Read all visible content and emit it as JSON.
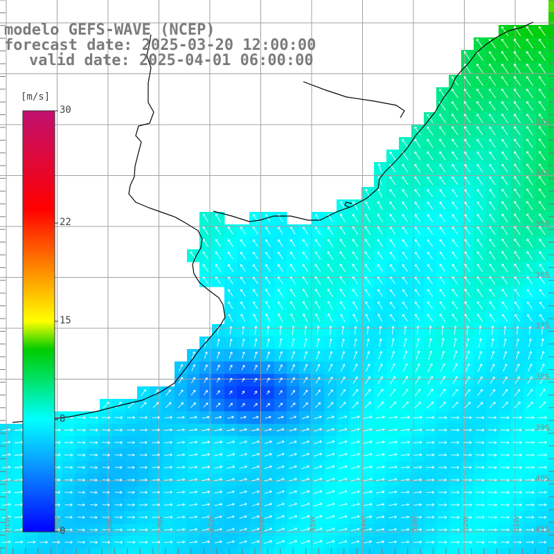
{
  "header": {
    "model": "modelo GEFS-WAVE (NCEP)",
    "forecast": "forecast date: 2025-03-20 12:00:00",
    "valid": "valid date: 2025-04-01 06:00:00"
  },
  "colorbar": {
    "unit": "[m/s]",
    "ticks": [
      "30",
      "22",
      "15",
      "8",
      "0"
    ],
    "tick_values": [
      30,
      22,
      15,
      8,
      0
    ],
    "range": [
      0,
      30
    ],
    "colors": [
      "#0000ff",
      "#0aa0ff",
      "#00ffff",
      "#00e060",
      "#00cc00",
      "#ffff00",
      "#ff8000",
      "#ff0000",
      "#c01070"
    ]
  },
  "map": {
    "variable": "wind speed",
    "land_color": "#ffffff",
    "coastline_color": "#000000",
    "grid_color": "#a0a0a0",
    "arrow_color": "#ffffff",
    "edge_labels": [
      "33S",
      "34S",
      "35S",
      "36S",
      "37S",
      "38S",
      "39S",
      "40S",
      "41S",
      "61W",
      "60W",
      "59W",
      "58W",
      "57W",
      "56W",
      "55W",
      "54W",
      "53W",
      "52W",
      "51W"
    ]
  }
}
